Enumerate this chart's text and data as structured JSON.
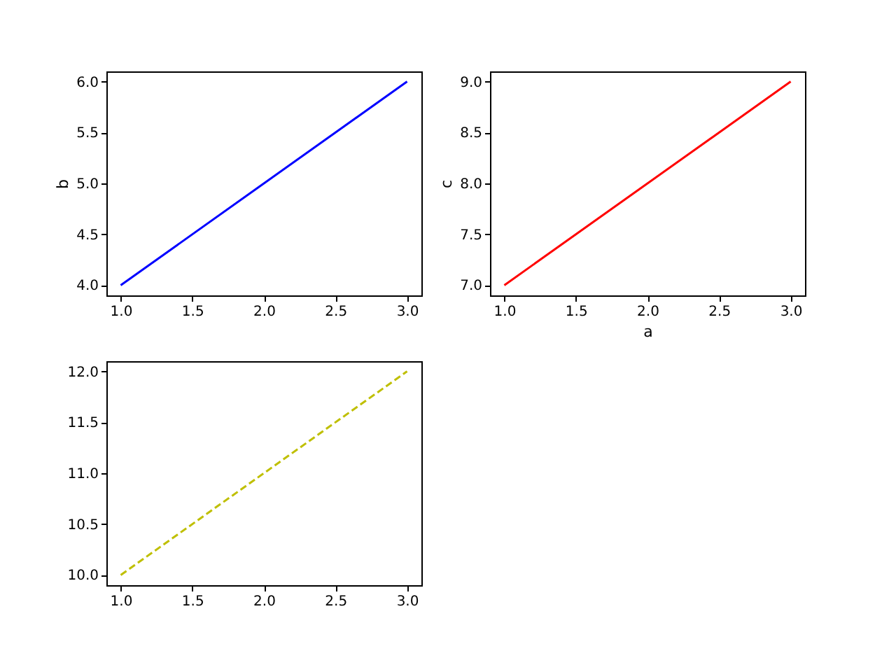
{
  "chart_data": [
    {
      "type": "line",
      "ylabel": "b",
      "x": [
        1,
        2,
        3
      ],
      "series": [
        {
          "color": "#0000ff",
          "values": [
            4,
            5,
            6
          ]
        }
      ],
      "xlim": [
        0.9,
        3.1
      ],
      "ylim": [
        3.9,
        6.1
      ],
      "xticks": [
        {
          "value": 1,
          "label": "1.0"
        },
        {
          "value": 1.5,
          "label": "1.5"
        },
        {
          "value": 2,
          "label": "2.0"
        },
        {
          "value": 2.5,
          "label": "2.5"
        },
        {
          "value": 3,
          "label": "3.0"
        }
      ],
      "yticks": [
        {
          "value": 4,
          "label": "4.0"
        },
        {
          "value": 4.5,
          "label": "4.5"
        },
        {
          "value": 5,
          "label": "5.0"
        },
        {
          "value": 5.5,
          "label": "5.5"
        },
        {
          "value": 6,
          "label": "6.0"
        }
      ],
      "line_style": "solid",
      "grid": false
    },
    {
      "type": "line",
      "xlabel": "a",
      "ylabel": "c",
      "x": [
        1,
        2,
        3
      ],
      "series": [
        {
          "color": "#ff0000",
          "values": [
            7,
            8,
            9
          ]
        }
      ],
      "xlim": [
        0.9,
        3.1
      ],
      "ylim": [
        6.9,
        9.1
      ],
      "xticks": [
        {
          "value": 1,
          "label": "1.0"
        },
        {
          "value": 1.5,
          "label": "1.5"
        },
        {
          "value": 2,
          "label": "2.0"
        },
        {
          "value": 2.5,
          "label": "2.5"
        },
        {
          "value": 3,
          "label": "3.0"
        }
      ],
      "yticks": [
        {
          "value": 7,
          "label": "7.0"
        },
        {
          "value": 7.5,
          "label": "7.5"
        },
        {
          "value": 8,
          "label": "8.0"
        },
        {
          "value": 8.5,
          "label": "8.5"
        },
        {
          "value": 9,
          "label": "9.0"
        }
      ],
      "line_style": "solid",
      "grid": false
    },
    {
      "type": "line",
      "x": [
        1,
        2,
        3
      ],
      "series": [
        {
          "color": "#bfbf00",
          "values": [
            10,
            11,
            12
          ]
        }
      ],
      "xlim": [
        0.9,
        3.1
      ],
      "ylim": [
        9.9,
        12.1
      ],
      "xticks": [
        {
          "value": 1,
          "label": "1.0"
        },
        {
          "value": 1.5,
          "label": "1.5"
        },
        {
          "value": 2,
          "label": "2.0"
        },
        {
          "value": 2.5,
          "label": "2.5"
        },
        {
          "value": 3,
          "label": "3.0"
        }
      ],
      "yticks": [
        {
          "value": 10,
          "label": "10.0"
        },
        {
          "value": 10.5,
          "label": "10.5"
        },
        {
          "value": 11,
          "label": "11.0"
        },
        {
          "value": 11.5,
          "label": "11.5"
        },
        {
          "value": 12,
          "label": "12.0"
        }
      ],
      "line_style": "dashed",
      "grid": false
    }
  ]
}
